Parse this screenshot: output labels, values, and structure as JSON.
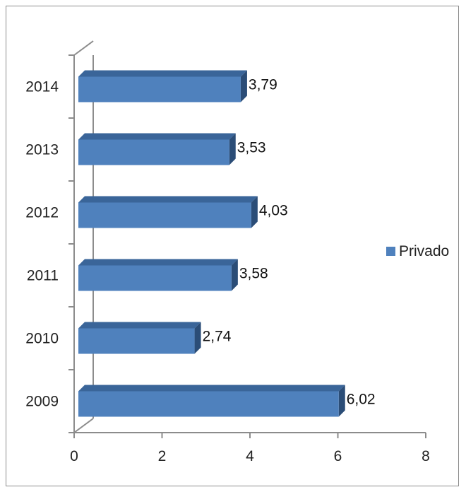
{
  "chart_data": {
    "type": "bar",
    "orientation": "horizontal",
    "style": "3d",
    "categories": [
      "2009",
      "2010",
      "2011",
      "2012",
      "2013",
      "2014"
    ],
    "series": [
      {
        "name": "Privado",
        "values": [
          6.02,
          2.74,
          3.58,
          4.03,
          3.53,
          3.79
        ]
      }
    ],
    "data_labels": [
      "6,02",
      "2,74",
      "3,58",
      "4,03",
      "3,53",
      "3,79"
    ],
    "x_ticks": [
      "0",
      "2",
      "4",
      "6",
      "8"
    ],
    "xlim": [
      0,
      8
    ],
    "title": "",
    "xlabel": "",
    "ylabel": "",
    "grid": false,
    "legend": "right",
    "colors": {
      "bar_front": "#4f81bd",
      "bar_top": "#3a6599",
      "bar_side": "#2b4d77",
      "axis": "#8c8c8c"
    }
  }
}
